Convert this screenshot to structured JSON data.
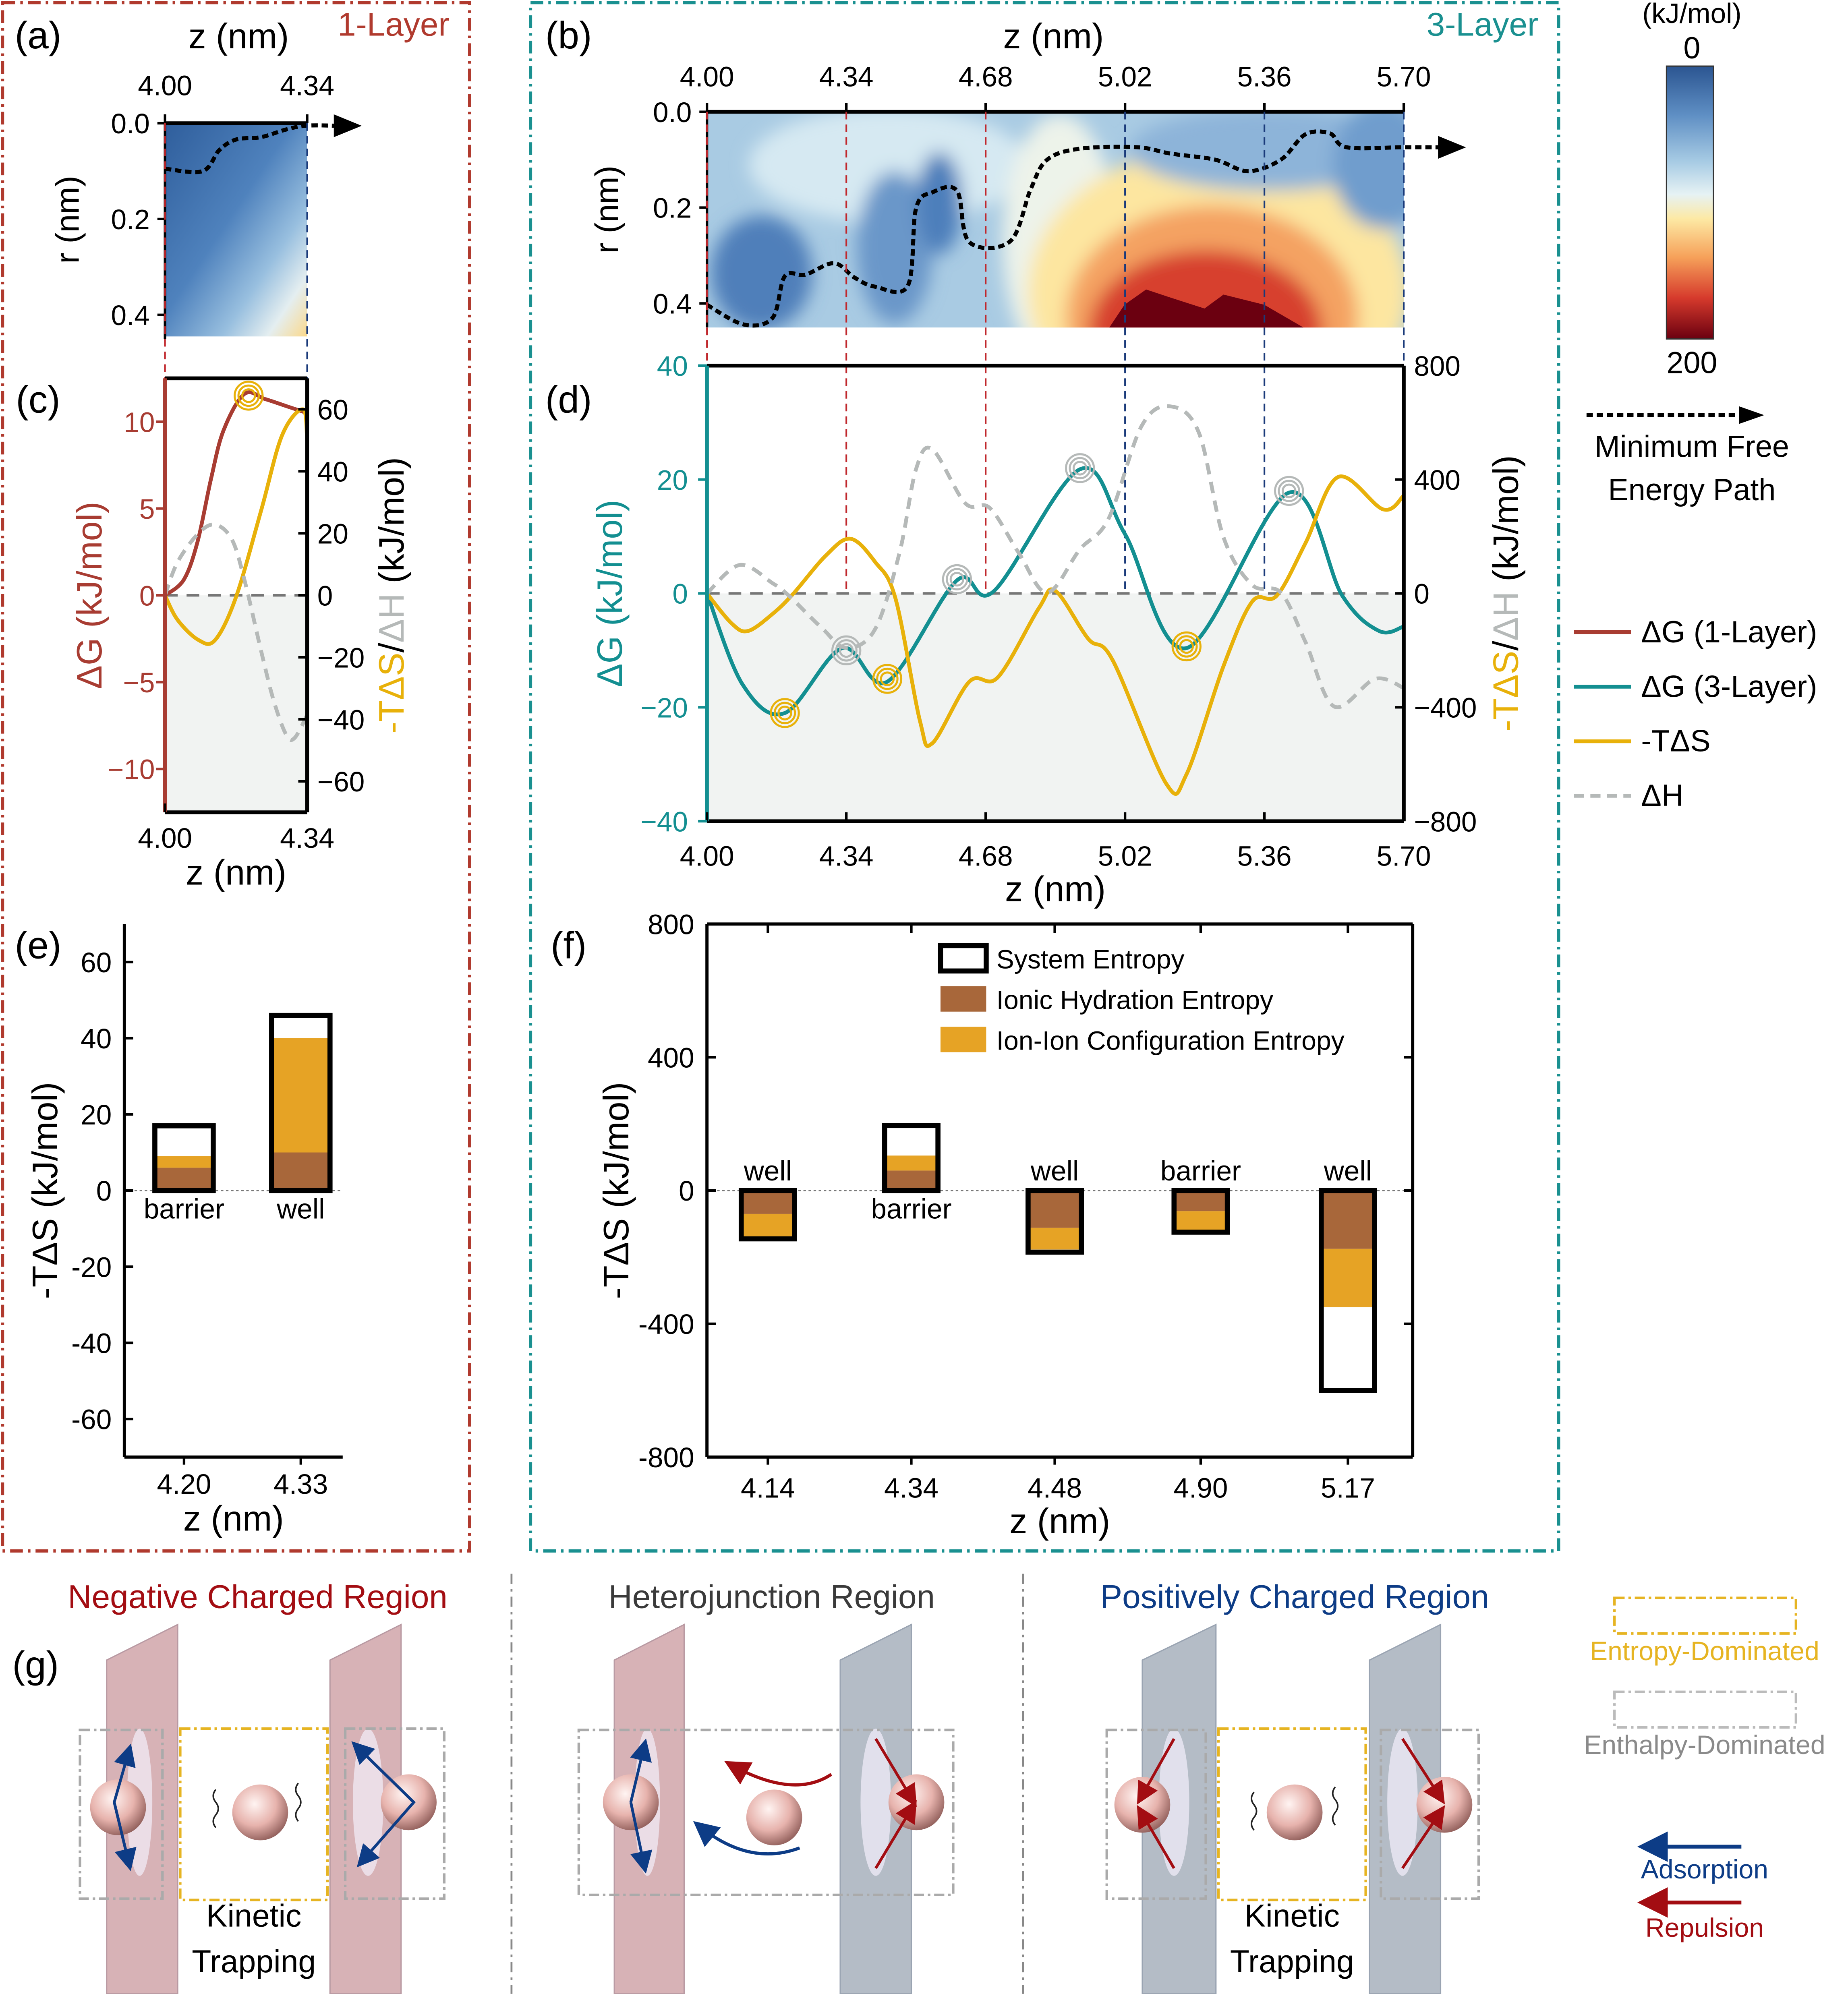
{
  "panel_labels": {
    "a": "(a)",
    "b": "(b)",
    "c": "(c)",
    "d": "(d)",
    "e": "(e)",
    "f": "(f)",
    "g": "(g)"
  },
  "colors": {
    "dg_1layer": "#a83c32",
    "dg_3layer": "#138f91",
    "tds": "#e8b10a",
    "dh": "#b5b9b8",
    "hydration": "#a8673a",
    "ion_ion": "#e6a325",
    "one_layer_frame": "#b03a2e",
    "three_layer_frame": "#1a9090",
    "negative": "#a30d12",
    "positive": "#0d3c86",
    "hetero": "#3a3a3a",
    "entropy": "#e6b422",
    "enthalpy": "#8a8a8a"
  },
  "colorbar": {
    "unit": "(kJ/mol)",
    "min_label": "0",
    "max_label": "200",
    "min": 0,
    "max": 200,
    "colormap": "RdYlBu_r"
  },
  "mfep_legend": {
    "line1": "Minimum Free",
    "line2": "Energy Path"
  },
  "chart_data": [
    {
      "id": "a",
      "type": "heatmap",
      "title": "1-Layer",
      "xlabel": "z (nm)",
      "ylabel": "r (nm)",
      "x_ticks": [
        "4.00",
        "4.34"
      ],
      "y_ticks": [
        "0.0",
        "0.2",
        "0.4"
      ],
      "xlim": [
        4.0,
        4.34
      ],
      "ylim": [
        0,
        0.45
      ],
      "mfep": [
        [
          4.0,
          0.095
        ],
        [
          4.09,
          0.1
        ],
        [
          4.13,
          0.056
        ],
        [
          4.17,
          0.034
        ],
        [
          4.23,
          0.029
        ],
        [
          4.29,
          0.013
        ],
        [
          4.34,
          0.005
        ]
      ]
    },
    {
      "id": "b",
      "type": "heatmap",
      "title": "3-Layer",
      "xlabel": "z (nm)",
      "ylabel": "r (nm)",
      "x_ticks": [
        "4.00",
        "4.34",
        "4.68",
        "5.02",
        "5.36",
        "5.70"
      ],
      "y_ticks": [
        "0.0",
        "0.2",
        "0.4"
      ],
      "xlim": [
        4.0,
        5.7
      ],
      "ylim": [
        0,
        0.45
      ],
      "mfep": [
        [
          4.0,
          0.403
        ],
        [
          4.09,
          0.444
        ],
        [
          4.16,
          0.43
        ],
        [
          4.19,
          0.343
        ],
        [
          4.24,
          0.34
        ],
        [
          4.31,
          0.316
        ],
        [
          4.36,
          0.346
        ],
        [
          4.41,
          0.365
        ],
        [
          4.49,
          0.363
        ],
        [
          4.51,
          0.202
        ],
        [
          4.55,
          0.168
        ],
        [
          4.61,
          0.165
        ],
        [
          4.64,
          0.272
        ],
        [
          4.74,
          0.27
        ],
        [
          4.79,
          0.161
        ],
        [
          4.83,
          0.1
        ],
        [
          4.91,
          0.077
        ],
        [
          5.05,
          0.074
        ],
        [
          5.13,
          0.087
        ],
        [
          5.24,
          0.1
        ],
        [
          5.32,
          0.124
        ],
        [
          5.4,
          0.1
        ],
        [
          5.46,
          0.047
        ],
        [
          5.52,
          0.045
        ],
        [
          5.56,
          0.074
        ],
        [
          5.7,
          0.074
        ]
      ]
    },
    {
      "id": "c",
      "type": "line",
      "xlabel": "z (nm)",
      "ylabel_left": "ΔG (kJ/mol)",
      "ylabel_right": [
        {
          "text": "-TΔS",
          "color": "#e8b10a"
        },
        {
          "text": "/",
          "color": "#000000"
        },
        {
          "text": "ΔH",
          "color": "#b5b9b8"
        },
        {
          "text": " (kJ/mol)",
          "color": "#000000"
        }
      ],
      "x_ticks": [
        "4.00",
        "4.34"
      ],
      "xlim": [
        4.0,
        4.34
      ],
      "y_ticks_left": [
        "10",
        "5",
        "0",
        "−5",
        "−10"
      ],
      "y_ticks_left_values": [
        10,
        5,
        0,
        -5,
        -10
      ],
      "ylim_left": [
        -12.5,
        12.5
      ],
      "y_ticks_right": [
        "60",
        "40",
        "20",
        "0",
        "−20",
        "−40",
        "−60"
      ],
      "y_ticks_right_values": [
        60,
        40,
        20,
        0,
        -20,
        -40,
        -60
      ],
      "ylim_right": [
        -70,
        70
      ],
      "series": [
        {
          "name": "ΔG (1-Layer)",
          "axis": "left",
          "color": "#a83c32",
          "style": "solid",
          "points": [
            [
              4.0,
              0
            ],
            [
              4.045,
              0.9
            ],
            [
              4.078,
              3.1
            ],
            [
              4.11,
              6.7
            ],
            [
              4.14,
              9.5
            ],
            [
              4.19,
              11.6
            ],
            [
              4.24,
              11.3
            ],
            [
              4.29,
              10.9
            ],
            [
              4.34,
              10.5
            ]
          ]
        },
        {
          "name": "-TΔS",
          "axis": "right",
          "color": "#e8b10a",
          "style": "solid",
          "points": [
            [
              4.0,
              0
            ],
            [
              4.03,
              -7.9
            ],
            [
              4.08,
              -14.4
            ],
            [
              4.12,
              -14.4
            ],
            [
              4.17,
              -0.5
            ],
            [
              4.23,
              27.4
            ],
            [
              4.28,
              51.6
            ],
            [
              4.33,
              60
            ],
            [
              4.34,
              50
            ]
          ]
        },
        {
          "name": "ΔH",
          "axis": "right",
          "color": "#b5b9b8",
          "style": "dashed",
          "points": [
            [
              4.0,
              0
            ],
            [
              4.03,
              10.7
            ],
            [
              4.08,
              20
            ],
            [
              4.12,
              22.8
            ],
            [
              4.16,
              18
            ],
            [
              4.19,
              5
            ],
            [
              4.23,
              -18
            ],
            [
              4.26,
              -34
            ],
            [
              4.29,
              -45
            ],
            [
              4.31,
              -46
            ],
            [
              4.34,
              -38.6
            ]
          ]
        }
      ],
      "markers": [
        {
          "x": 4.2,
          "y": 11.5,
          "axis": "left",
          "color": "#e8b10a"
        }
      ]
    },
    {
      "id": "d",
      "type": "line",
      "xlabel": "z (nm)",
      "ylabel_left": "ΔG (kJ/mol)",
      "ylabel_right": [
        {
          "text": "-TΔS",
          "color": "#e8b10a"
        },
        {
          "text": "/",
          "color": "#000000"
        },
        {
          "text": "ΔH",
          "color": "#b5b9b8"
        },
        {
          "text": " (kJ/mol)",
          "color": "#000000"
        }
      ],
      "x_ticks": [
        "4.00",
        "4.34",
        "4.68",
        "5.02",
        "5.36",
        "5.70"
      ],
      "xlim": [
        4.0,
        5.7
      ],
      "y_ticks_left": [
        "40",
        "20",
        "0",
        "−20",
        "−40"
      ],
      "y_ticks_left_values": [
        40,
        20,
        0,
        -20,
        -40
      ],
      "ylim_left": [
        -40,
        40
      ],
      "y_ticks_right": [
        "800",
        "400",
        "0",
        "−400",
        "−800"
      ],
      "y_ticks_right_values": [
        800,
        400,
        0,
        -400,
        -800
      ],
      "ylim_right": [
        -800,
        800
      ],
      "series": [
        {
          "name": "ΔG (3-Layer)",
          "axis": "left",
          "color": "#138f91",
          "style": "solid",
          "points": [
            [
              4.0,
              0
            ],
            [
              4.087,
              -16
            ],
            [
              4.19,
              -21
            ],
            [
              4.33,
              -9.6
            ],
            [
              4.44,
              -15.5
            ],
            [
              4.61,
              2.3
            ],
            [
              4.7,
              0.4
            ],
            [
              4.91,
              21.8
            ],
            [
              5.02,
              10.4
            ],
            [
              5.17,
              -9.6
            ],
            [
              5.42,
              17.7
            ],
            [
              5.55,
              -0.4
            ],
            [
              5.64,
              -6.6
            ],
            [
              5.7,
              -5.8
            ]
          ]
        },
        {
          "name": "-TΔS",
          "axis": "right",
          "color": "#e8b10a",
          "style": "solid",
          "points": [
            [
              4.0,
              0
            ],
            [
              4.06,
              -105
            ],
            [
              4.1,
              -132
            ],
            [
              4.16,
              -72
            ],
            [
              4.21,
              -2
            ],
            [
              4.29,
              133
            ],
            [
              4.35,
              192
            ],
            [
              4.41,
              111
            ],
            [
              4.46,
              -18
            ],
            [
              4.52,
              -450
            ],
            [
              4.55,
              -526
            ],
            [
              4.64,
              -310
            ],
            [
              4.71,
              -294
            ],
            [
              4.81,
              -51
            ],
            [
              4.85,
              9
            ],
            [
              4.93,
              -159
            ],
            [
              4.99,
              -235
            ],
            [
              5.12,
              -667
            ],
            [
              5.17,
              -635
            ],
            [
              5.26,
              -256
            ],
            [
              5.33,
              -29
            ],
            [
              5.39,
              -8
            ],
            [
              5.46,
              176
            ],
            [
              5.54,
              409
            ],
            [
              5.65,
              295
            ],
            [
              5.7,
              344
            ]
          ]
        },
        {
          "name": "ΔH",
          "axis": "right",
          "color": "#b5b9b8",
          "style": "dashed",
          "points": [
            [
              4.0,
              0
            ],
            [
              4.08,
              100
            ],
            [
              4.16,
              36
            ],
            [
              4.2,
              -8
            ],
            [
              4.28,
              -121
            ],
            [
              4.34,
              -191
            ],
            [
              4.41,
              -126
            ],
            [
              4.47,
              144
            ],
            [
              4.51,
              436
            ],
            [
              4.55,
              506
            ],
            [
              4.63,
              317
            ],
            [
              4.69,
              300
            ],
            [
              4.76,
              144
            ],
            [
              4.83,
              3
            ],
            [
              4.91,
              155
            ],
            [
              4.98,
              263
            ],
            [
              5.06,
              587
            ],
            [
              5.13,
              657
            ],
            [
              5.2,
              565
            ],
            [
              5.26,
              198
            ],
            [
              5.33,
              30
            ],
            [
              5.4,
              3
            ],
            [
              5.46,
              -170
            ],
            [
              5.53,
              -397
            ],
            [
              5.63,
              -300
            ],
            [
              5.7,
              -332
            ]
          ]
        }
      ],
      "markers": [
        {
          "x": 4.19,
          "y": -21,
          "axis": "left",
          "color": "#e8b10a"
        },
        {
          "x": 4.44,
          "y": -15,
          "axis": "left",
          "color": "#e8b10a"
        },
        {
          "x": 5.17,
          "y": -9.3,
          "axis": "left",
          "color": "#e8b10a"
        },
        {
          "x": 4.34,
          "y": -10,
          "axis": "left",
          "color": "#b5b9b8"
        },
        {
          "x": 4.61,
          "y": 2.5,
          "axis": "left",
          "color": "#b5b9b8"
        },
        {
          "x": 4.91,
          "y": 22,
          "axis": "left",
          "color": "#b5b9b8"
        },
        {
          "x": 5.42,
          "y": 18,
          "axis": "left",
          "color": "#b5b9b8"
        }
      ]
    },
    {
      "id": "e",
      "type": "bar",
      "stacked": true,
      "xlabel": "z (nm)",
      "ylabel": "-TΔS (kJ/mol)",
      "categories": [
        "4.20",
        "4.33"
      ],
      "bar_labels": [
        "barrier",
        "well"
      ],
      "y_ticks": [
        "60",
        "40",
        "20",
        "0",
        "-20",
        "-40",
        "-60"
      ],
      "y_tick_values": [
        60,
        40,
        20,
        0,
        -20,
        -40,
        -60
      ],
      "ylim": [
        -70,
        70
      ],
      "system": [
        17,
        46
      ],
      "hydration": [
        6,
        10
      ],
      "ion_ion": [
        3,
        30
      ]
    },
    {
      "id": "f",
      "type": "bar",
      "stacked": true,
      "xlabel": "z (nm)",
      "ylabel": "-TΔS (kJ/mol)",
      "categories": [
        "4.14",
        "4.34",
        "4.48",
        "4.90",
        "5.17"
      ],
      "bar_labels": [
        "well",
        "barrier",
        "well",
        "barrier",
        "well"
      ],
      "y_ticks": [
        "800",
        "400",
        "0",
        "-400",
        "-800"
      ],
      "y_tick_values": [
        800,
        400,
        0,
        -400,
        -800
      ],
      "ylim": [
        -800,
        800
      ],
      "system": [
        -145,
        195,
        -185,
        -125,
        -600
      ],
      "hydration": [
        -70,
        60,
        -112,
        -62,
        -175
      ],
      "ion_ion": [
        -80,
        45,
        -65,
        -70,
        -175
      ],
      "legend": {
        "system": "System Entropy",
        "hydration": "Ionic Hydration Entropy",
        "ion_ion": "Ion-Ion Configuration Entropy"
      }
    }
  ],
  "legend_d": [
    {
      "label": "ΔG (1-Layer)",
      "color": "#a83c32",
      "style": "solid"
    },
    {
      "label": "ΔG (3-Layer)",
      "color": "#138f91",
      "style": "solid"
    },
    {
      "label": "-TΔS",
      "color": "#e8b10a",
      "style": "solid"
    },
    {
      "label": "ΔH",
      "color": "#b5b9b8",
      "style": "dashed"
    }
  ],
  "diagram": {
    "regions": [
      "Negative Charged Region",
      "Heterojunction Region",
      "Positively Charged Region"
    ],
    "kinetic_trapping": [
      "Kinetic",
      "Trapping"
    ],
    "legend": {
      "entropy": "Entropy-Dominated",
      "enthalpy": "Enthalpy-Dominated",
      "adsorption": "Adsorption",
      "repulsion": "Repulsion"
    }
  }
}
